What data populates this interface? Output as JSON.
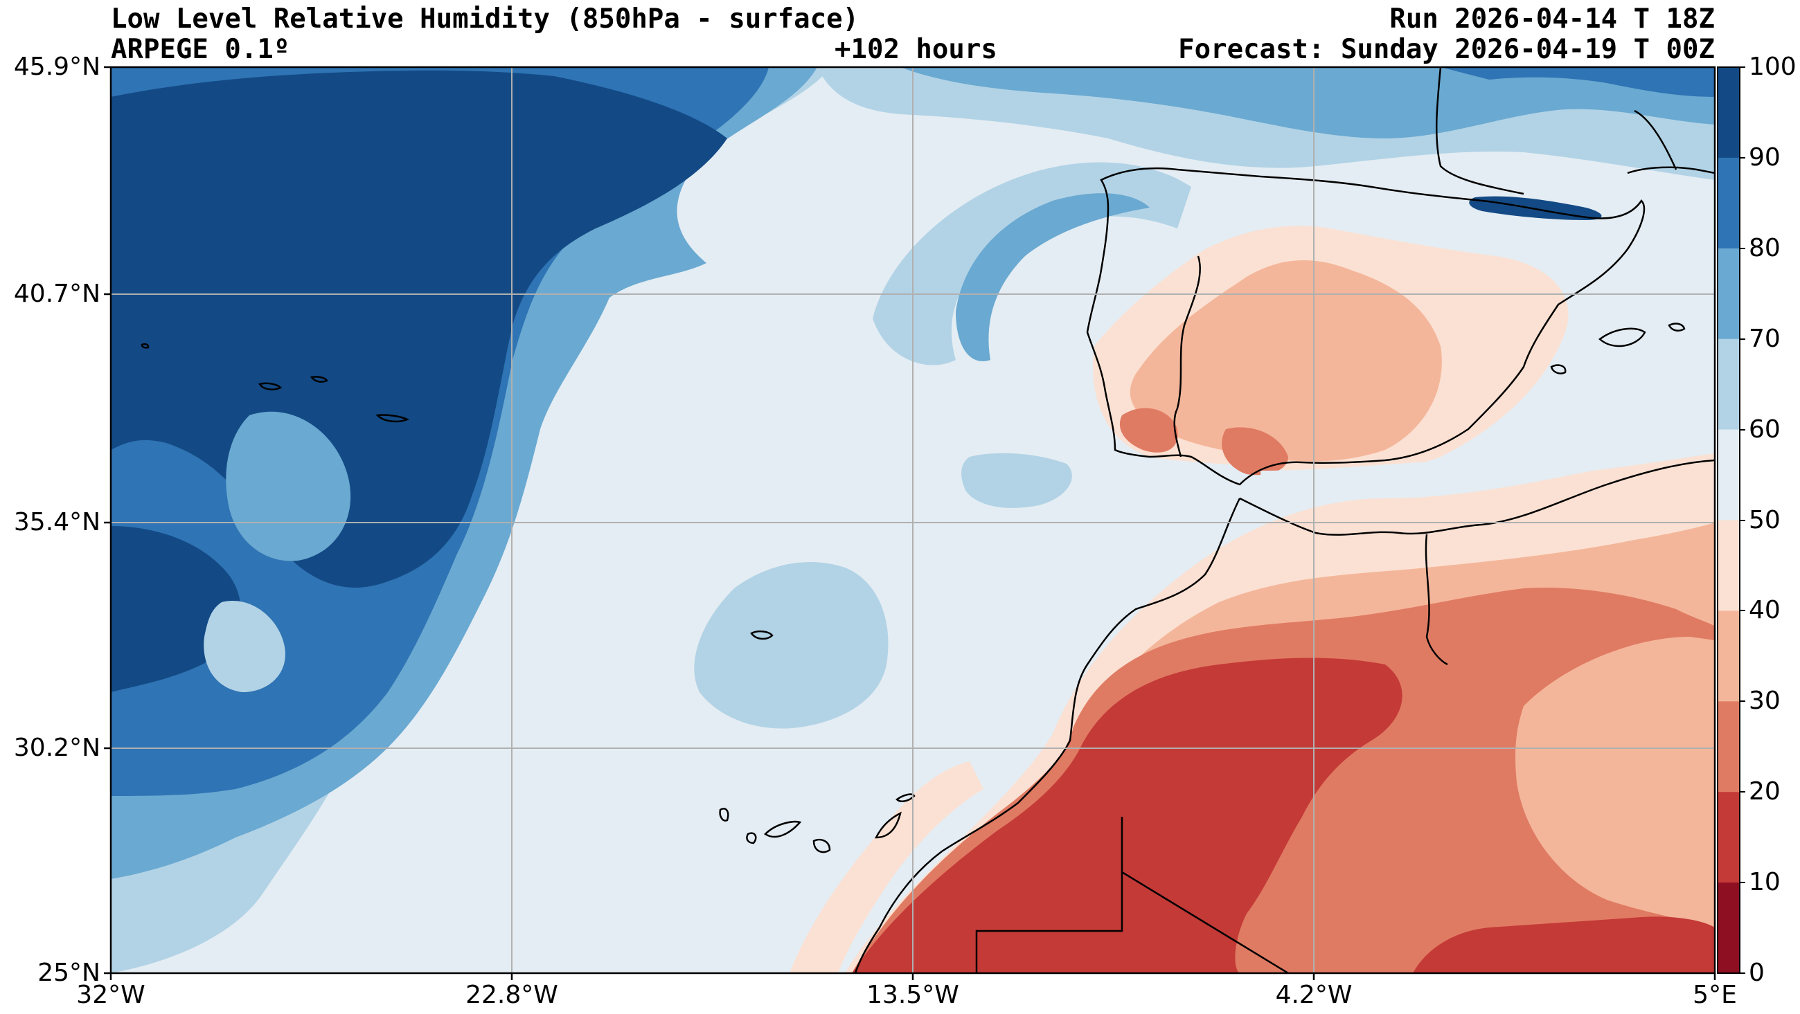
{
  "header": {
    "title": "Low Level Relative Humidity (850hPa - surface)",
    "model": "ARPEGE 0.1º",
    "lead": "+102 hours",
    "run": "Run 2026-04-14 T 18Z",
    "forecast": "Forecast: Sunday 2026-04-19 T 00Z"
  },
  "axes": {
    "lat_labels": [
      "45.9°N",
      "40.7°N",
      "35.4°N",
      "30.2°N",
      "25°N"
    ],
    "lon_labels": [
      "32°W",
      "22.8°W",
      "13.5°W",
      "4.2°W",
      "5°E"
    ],
    "lat_range": [
      25,
      45.9
    ],
    "lon_range": [
      -32,
      5
    ]
  },
  "colorbar": {
    "labels": [
      "100",
      "90",
      "80",
      "70",
      "60",
      "50",
      "40",
      "30",
      "20",
      "10",
      "0"
    ],
    "colors": [
      "#134a85",
      "#2f74b4",
      "#6aa9d1",
      "#b2d3e6",
      "#e4edf3",
      "#fbe1d3",
      "#f4b69a",
      "#e07b63",
      "#c43a37",
      "#8e0f22"
    ]
  },
  "colors": {
    "ocean_high": "#134a85",
    "ocean_mid": "#2f74b4",
    "ocean_light": "#6aa9d1",
    "pale_blue": "#b2d3e6",
    "neutral": "#e4edf3",
    "peach": "#fbe1d3",
    "salmon": "#f4b69a",
    "orange_red": "#e07b63",
    "red": "#c43a37",
    "grid": "#b0b0b0"
  }
}
